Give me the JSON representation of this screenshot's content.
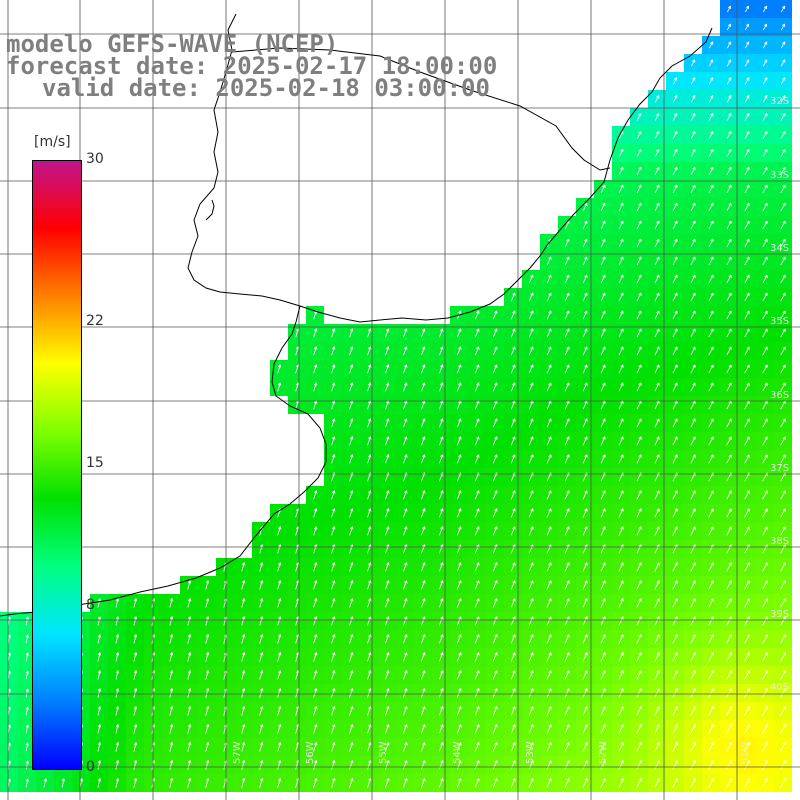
{
  "title": {
    "model": "modelo GEFS-WAVE (NCEP)",
    "forecast": "forecast date: 2025-02-17 18:00:00",
    "valid": "valid date: 2025-02-18 03:00:00"
  },
  "colorbar": {
    "unit": "[m/s]",
    "ticks": [
      "30",
      "22",
      "15",
      "8",
      "0"
    ],
    "min": 0,
    "max": 30,
    "colors": [
      "#0000ff",
      "#0080ff",
      "#00e5ff",
      "#00ff80",
      "#00e000",
      "#7fff00",
      "#ffff00",
      "#ff8000",
      "#ff0000",
      "#c0148c"
    ]
  },
  "map": {
    "variable": "wind speed",
    "lat_labels": [
      "32S",
      "33S",
      "34S",
      "35S",
      "36S",
      "37S",
      "38S",
      "39S",
      "40S"
    ],
    "lon_labels": [
      "57W",
      "56W",
      "55W",
      "54W",
      "53W",
      "52W",
      "51W"
    ],
    "land_color": "#ffffff",
    "grid_color": "#555555",
    "coast_color": "#000000",
    "arrow_color": "#ffffff",
    "wind_direction": "from south-southwest"
  }
}
